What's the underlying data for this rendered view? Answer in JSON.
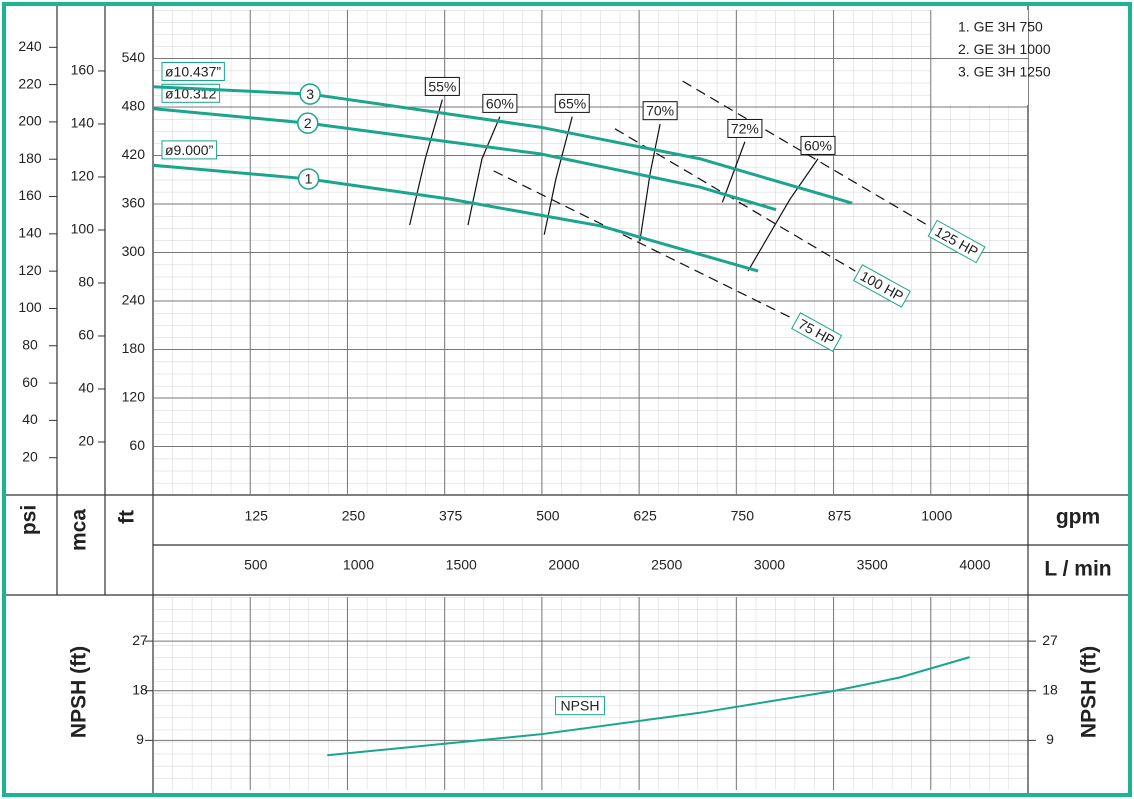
{
  "chart_data": [
    {
      "type": "line",
      "x_label": "gpm",
      "x2_label": "L / min",
      "y_label": "ft",
      "y2_label": "psi",
      "y3_label": "mca",
      "xlim": [
        0,
        1125
      ],
      "xticks": [
        125,
        250,
        375,
        500,
        625,
        750,
        875,
        1000
      ],
      "x2lim": [
        0,
        4258
      ],
      "x2ticks": [
        500,
        1000,
        1500,
        2000,
        2500,
        3000,
        3500,
        4000
      ],
      "ylim": [
        0,
        600
      ],
      "yticks": [
        60,
        120,
        180,
        240,
        300,
        360,
        420,
        480,
        540
      ],
      "y2lim": [
        0,
        260
      ],
      "y2ticks": [
        20,
        40,
        60,
        80,
        100,
        120,
        140,
        160,
        180,
        200,
        220,
        240
      ],
      "y3lim": [
        0,
        183
      ],
      "y3ticks": [
        20,
        40,
        60,
        80,
        100,
        120,
        140,
        160
      ],
      "grid": true,
      "series": [
        {
          "name": "1. GE 3H 750",
          "marker_label": "1",
          "diameter": "ø9.000”",
          "color": "#1aa58c",
          "x": [
            0,
            200,
            382,
            575,
            778
          ],
          "values": [
            408,
            391,
            366,
            333,
            277
          ]
        },
        {
          "name": "2. GE 3H 1000",
          "marker_label": "2",
          "diameter": "ø10.312",
          "color": "#1aa58c",
          "x": [
            0,
            199,
            498,
            703,
            801
          ],
          "values": [
            478,
            460,
            422,
            381,
            353
          ]
        },
        {
          "name": "3. GE 3H 1250",
          "marker_label": "3",
          "diameter": "ø10.437”",
          "color": "#1aa58c",
          "x": [
            0,
            202,
            498,
            703,
            899
          ],
          "values": [
            505,
            496,
            455,
            416,
            361
          ]
        }
      ],
      "efficiency_curves": [
        {
          "label": "55%",
          "x": [
            330,
            350,
            372
          ],
          "values": [
            334,
            416,
            489
          ]
        },
        {
          "label": "60%",
          "x": [
            405,
            423,
            446
          ],
          "values": [
            334,
            416,
            468
          ]
        },
        {
          "label": "65%",
          "x": [
            503,
            518,
            539
          ],
          "values": [
            322,
            391,
            468
          ]
        },
        {
          "label": "70%",
          "x": [
            626,
            639,
            652
          ],
          "values": [
            314,
            397,
            459
          ]
        },
        {
          "label": "72%",
          "x": [
            732,
            761
          ],
          "values": [
            362,
            437
          ]
        },
        {
          "label": "60%",
          "x": [
            765,
            819,
            855
          ],
          "values": [
            277,
            366,
            416
          ]
        }
      ],
      "power_lines": [
        {
          "label": "75 HP",
          "x": [
            438,
            819
          ],
          "values": [
            401,
            220
          ]
        },
        {
          "label": "100 HP",
          "x": [
            594,
            903
          ],
          "values": [
            453,
            277
          ]
        },
        {
          "label": "125 HP",
          "x": [
            681,
            999
          ],
          "values": [
            512,
            332
          ]
        }
      ]
    },
    {
      "type": "line",
      "y_label": "NPSH (ft)",
      "xlim": [
        0,
        1125
      ],
      "xticks": [
        125,
        250,
        375,
        500,
        625,
        750,
        875,
        1000
      ],
      "ylim": [
        0,
        35
      ],
      "yticks": [
        9,
        18,
        27
      ],
      "grid": true,
      "series": [
        {
          "name": "NPSH",
          "color": "#1aa58c",
          "x": [
            224,
            498,
            703,
            877,
            960,
            1050
          ],
          "values": [
            6.3,
            10.1,
            14,
            18,
            20.4,
            24.1
          ]
        }
      ]
    }
  ]
}
